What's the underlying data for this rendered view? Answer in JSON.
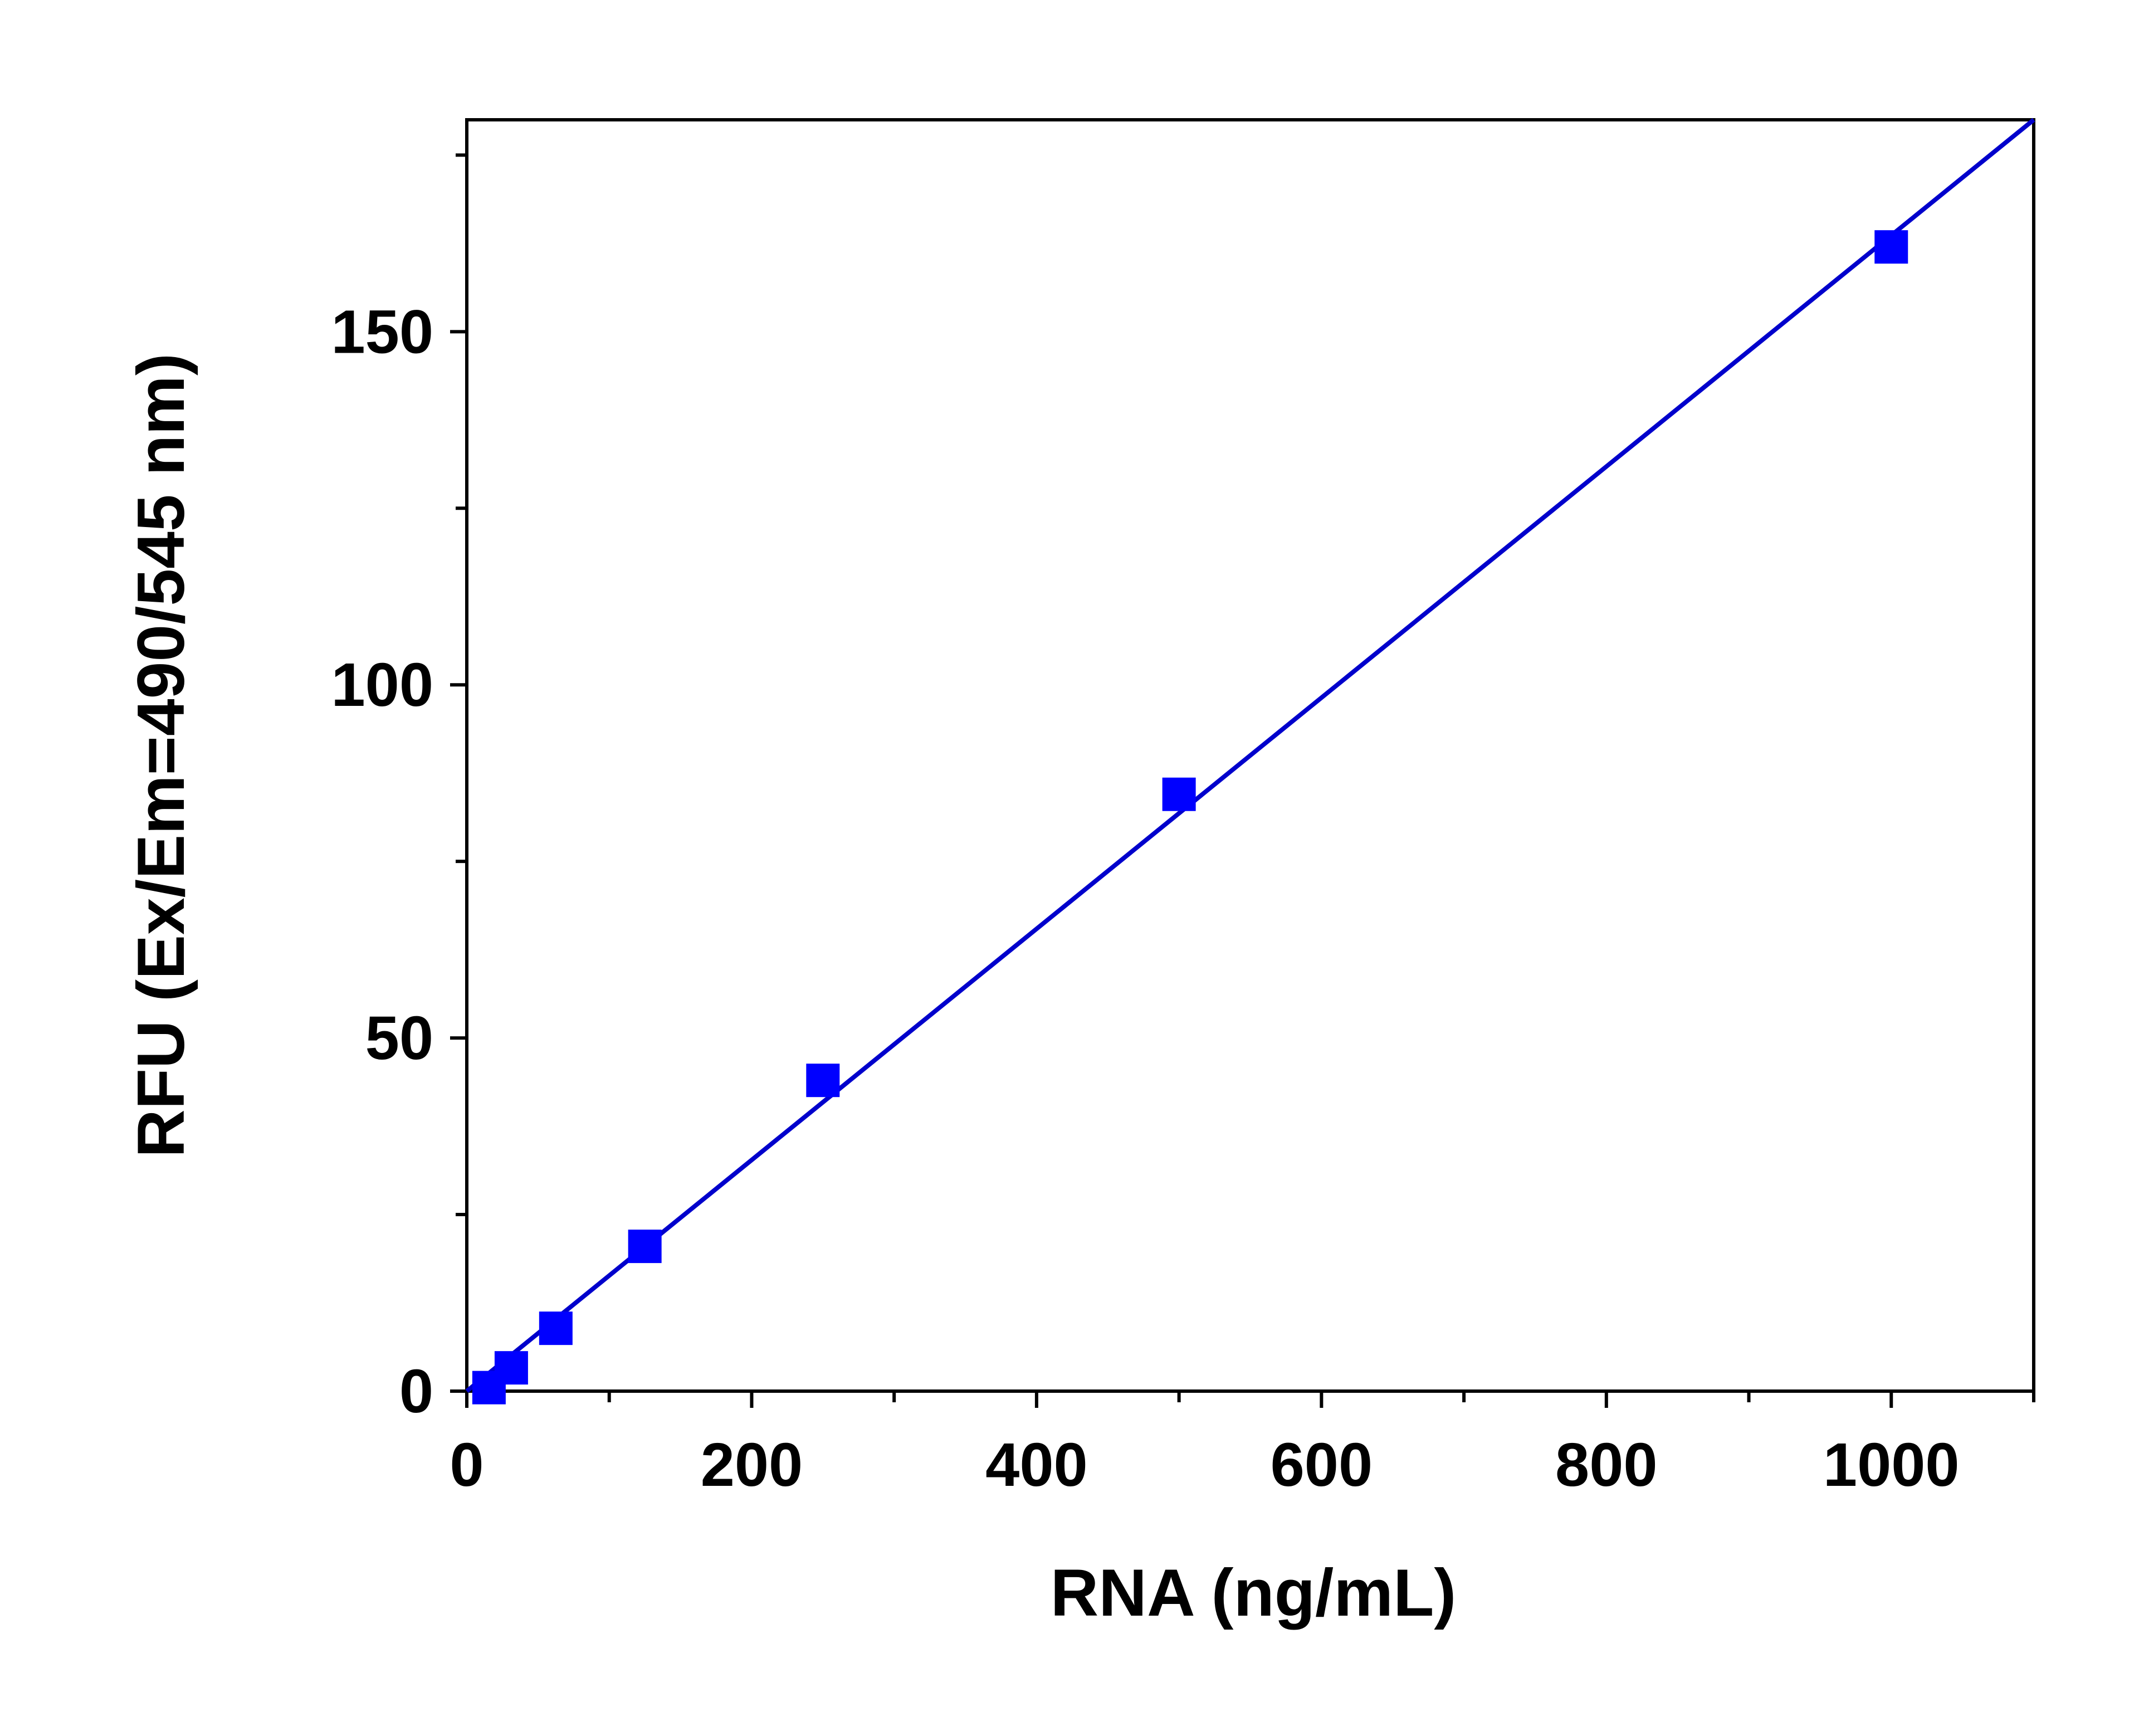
{
  "chart_data": {
    "type": "scatter",
    "title": "",
    "xlabel": "RNA (ng/mL)",
    "ylabel": "RFU (Ex/Em=490/545 nm)",
    "xlim": [
      0,
      1100
    ],
    "ylim": [
      0,
      180
    ],
    "x_ticks": [
      0,
      200,
      400,
      600,
      800,
      1000
    ],
    "x_tick_labels": [
      "0",
      "200",
      "400",
      "600",
      "800",
      "1000"
    ],
    "x_minor_ticks": [
      100,
      300,
      500,
      700,
      900,
      1100
    ],
    "y_ticks": [
      0,
      50,
      100,
      150
    ],
    "y_tick_labels": [
      "0",
      "50",
      "100",
      "150"
    ],
    "y_minor_ticks": [
      25,
      75,
      125,
      175
    ],
    "grid": false,
    "legend": "none",
    "series": [
      {
        "marker": "square",
        "color": "#0000ff",
        "x": [
          15.6,
          31.25,
          62.5,
          125,
          250,
          500,
          1000
        ],
        "y": [
          0.5,
          3.3,
          8.9,
          20.5,
          44,
          84.5,
          162
        ]
      }
    ],
    "fit_line": {
      "color": "#0000cc",
      "x": [
        0,
        1100
      ],
      "y": [
        0,
        180
      ]
    }
  }
}
